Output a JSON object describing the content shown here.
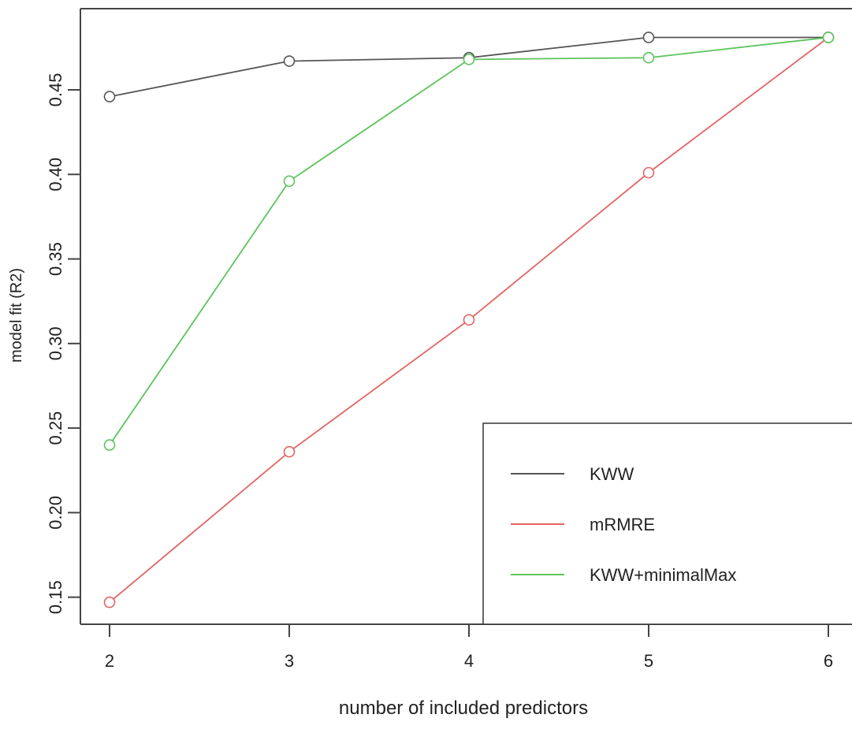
{
  "chart_data": {
    "type": "line",
    "title": "",
    "xlabel": "number of included predictors",
    "ylabel": "model fit (R2)",
    "x": [
      2,
      3,
      4,
      5,
      6
    ],
    "xlim": [
      2,
      6
    ],
    "ylim": [
      0.134,
      0.498
    ],
    "xticks": [
      "2",
      "3",
      "4",
      "5",
      "6"
    ],
    "yticks": [
      "0.15",
      "0.20",
      "0.25",
      "0.30",
      "0.35",
      "0.40",
      "0.45"
    ],
    "yticks_values": [
      0.15,
      0.2,
      0.25,
      0.3,
      0.35,
      0.4,
      0.45
    ],
    "grid": false,
    "legend_position": "bottom-right",
    "markers": "open-circle",
    "series": [
      {
        "name": "KWW",
        "color": "#555555",
        "values": [
          0.446,
          0.467,
          0.469,
          0.481,
          0.481
        ]
      },
      {
        "name": "mRMRE",
        "color": "#e46464",
        "values": [
          0.147,
          0.236,
          0.314,
          0.401,
          0.481
        ]
      },
      {
        "name": "KWW+minimalMax",
        "color": "#5cc45c",
        "values": [
          0.24,
          0.396,
          0.468,
          0.469,
          0.481
        ]
      }
    ]
  }
}
